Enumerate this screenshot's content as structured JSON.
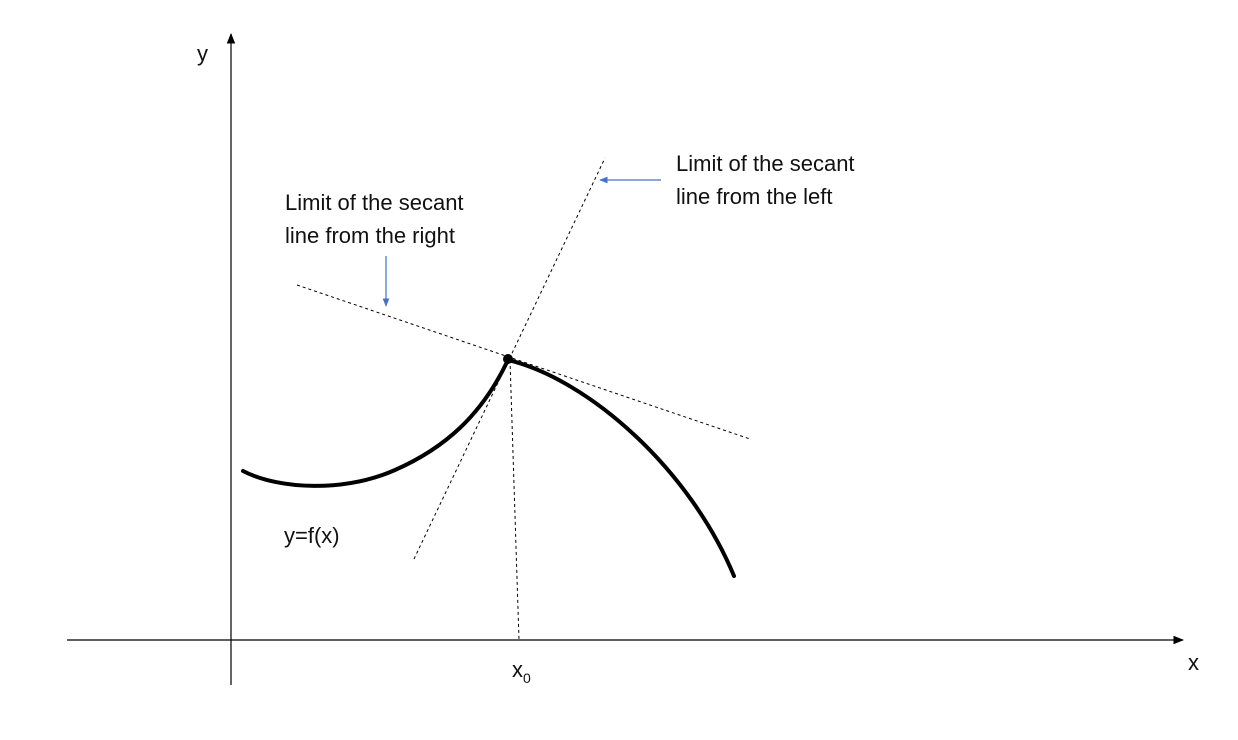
{
  "labels": {
    "y_axis": "y",
    "x_axis": "x",
    "x0_base": "x",
    "x0_sub": "0",
    "function": "y=f(x)",
    "right_limit_line1": "Limit of the secant",
    "right_limit_line2": "line from the right",
    "left_limit_line1": "Limit of the secant",
    "left_limit_line2": "line from the left"
  },
  "colors": {
    "stroke": "#000000",
    "arrow": "#4472c4",
    "text": "#111111"
  }
}
